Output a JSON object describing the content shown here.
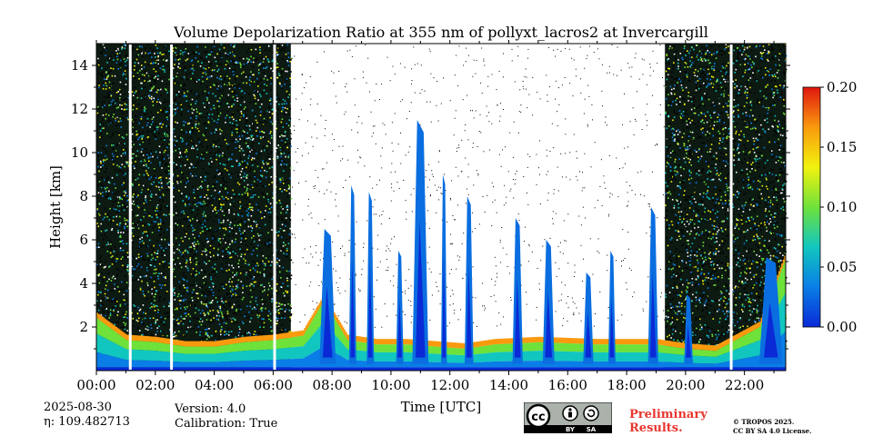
{
  "chart_data": {
    "type": "heatmap",
    "title": "Volume Depolarization Ratio at 355 nm of pollyxt_lacros2 at Invercargill",
    "xlabel": "Time [UTC]",
    "ylabel": "Height [km]",
    "x_tick_labels": [
      "00:00",
      "02:00",
      "04:00",
      "06:00",
      "08:00",
      "10:00",
      "12:00",
      "14:00",
      "16:00",
      "18:00",
      "20:00",
      "22:00"
    ],
    "x_ticks_hours": [
      0,
      2,
      4,
      6,
      8,
      10,
      12,
      14,
      16,
      18,
      20,
      22
    ],
    "xlim_hours": [
      0,
      23.4
    ],
    "y_ticks": [
      2,
      4,
      6,
      8,
      10,
      12,
      14
    ],
    "ylim": [
      0,
      15
    ],
    "colorbar": {
      "ticks": [
        "0.00",
        "0.05",
        "0.10",
        "0.15",
        "0.20"
      ],
      "range": [
        0,
        0.2
      ],
      "colormap": "jet",
      "colors": [
        "#0a2ad6",
        "#0a7ee6",
        "#12c6c0",
        "#6ee23a",
        "#f2f20e",
        "#f99a0e",
        "#e0160e"
      ]
    },
    "profile_gaps_hours": [
      1.15,
      2.55,
      6.05,
      21.55
    ],
    "clear_noise_periods_hours": [
      [
        0,
        6.6
      ],
      [
        19.3,
        23.4
      ]
    ],
    "aerosol_layer_top_km_by_hour": [
      [
        0,
        2.4
      ],
      [
        1,
        1.4
      ],
      [
        2,
        1.3
      ],
      [
        3,
        1.1
      ],
      [
        4,
        1.1
      ],
      [
        5,
        1.3
      ],
      [
        6,
        1.4
      ],
      [
        7,
        1.6
      ],
      [
        7.7,
        3.2
      ],
      [
        8.5,
        1.4
      ],
      [
        9.5,
        1.2
      ],
      [
        10.5,
        1.2
      ],
      [
        11.5,
        1.1
      ],
      [
        12.5,
        1.0
      ],
      [
        13.5,
        1.2
      ],
      [
        15,
        1.3
      ],
      [
        17,
        1.2
      ],
      [
        19,
        1.2
      ],
      [
        20,
        1.0
      ],
      [
        21,
        0.9
      ],
      [
        22.5,
        2.0
      ],
      [
        23.4,
        5.2
      ]
    ],
    "cloud_columns": [
      {
        "t": 7.85,
        "w": 0.55,
        "top": 6.5
      },
      {
        "t": 8.7,
        "w": 0.25,
        "top": 8.5
      },
      {
        "t": 9.3,
        "w": 0.25,
        "top": 8.2
      },
      {
        "t": 10.3,
        "w": 0.25,
        "top": 5.5
      },
      {
        "t": 11.0,
        "w": 0.55,
        "top": 11.5
      },
      {
        "t": 11.8,
        "w": 0.2,
        "top": 9.0
      },
      {
        "t": 12.65,
        "w": 0.3,
        "top": 8.0
      },
      {
        "t": 14.3,
        "w": 0.35,
        "top": 7.0
      },
      {
        "t": 15.35,
        "w": 0.4,
        "top": 6.0
      },
      {
        "t": 16.7,
        "w": 0.35,
        "top": 4.5
      },
      {
        "t": 17.5,
        "w": 0.25,
        "top": 5.5
      },
      {
        "t": 18.9,
        "w": 0.35,
        "top": 7.5
      },
      {
        "t": 20.1,
        "w": 0.3,
        "top": 3.5
      },
      {
        "t": 22.9,
        "w": 0.8,
        "top": 5.2
      }
    ]
  },
  "footer": {
    "date": "2025-08-30",
    "eta": "η: 109.482713",
    "version": "Version: 4.0",
    "calibration": "Calibration: True",
    "preliminary_line1": "Preliminary",
    "preliminary_line2": "Results.",
    "license_line1": "© TROPOS 2025.",
    "license_line2": "CC BY SA 4.0 License.",
    "cc_badge": {
      "cc": "cc",
      "by": "BY",
      "sa": "SA"
    }
  }
}
